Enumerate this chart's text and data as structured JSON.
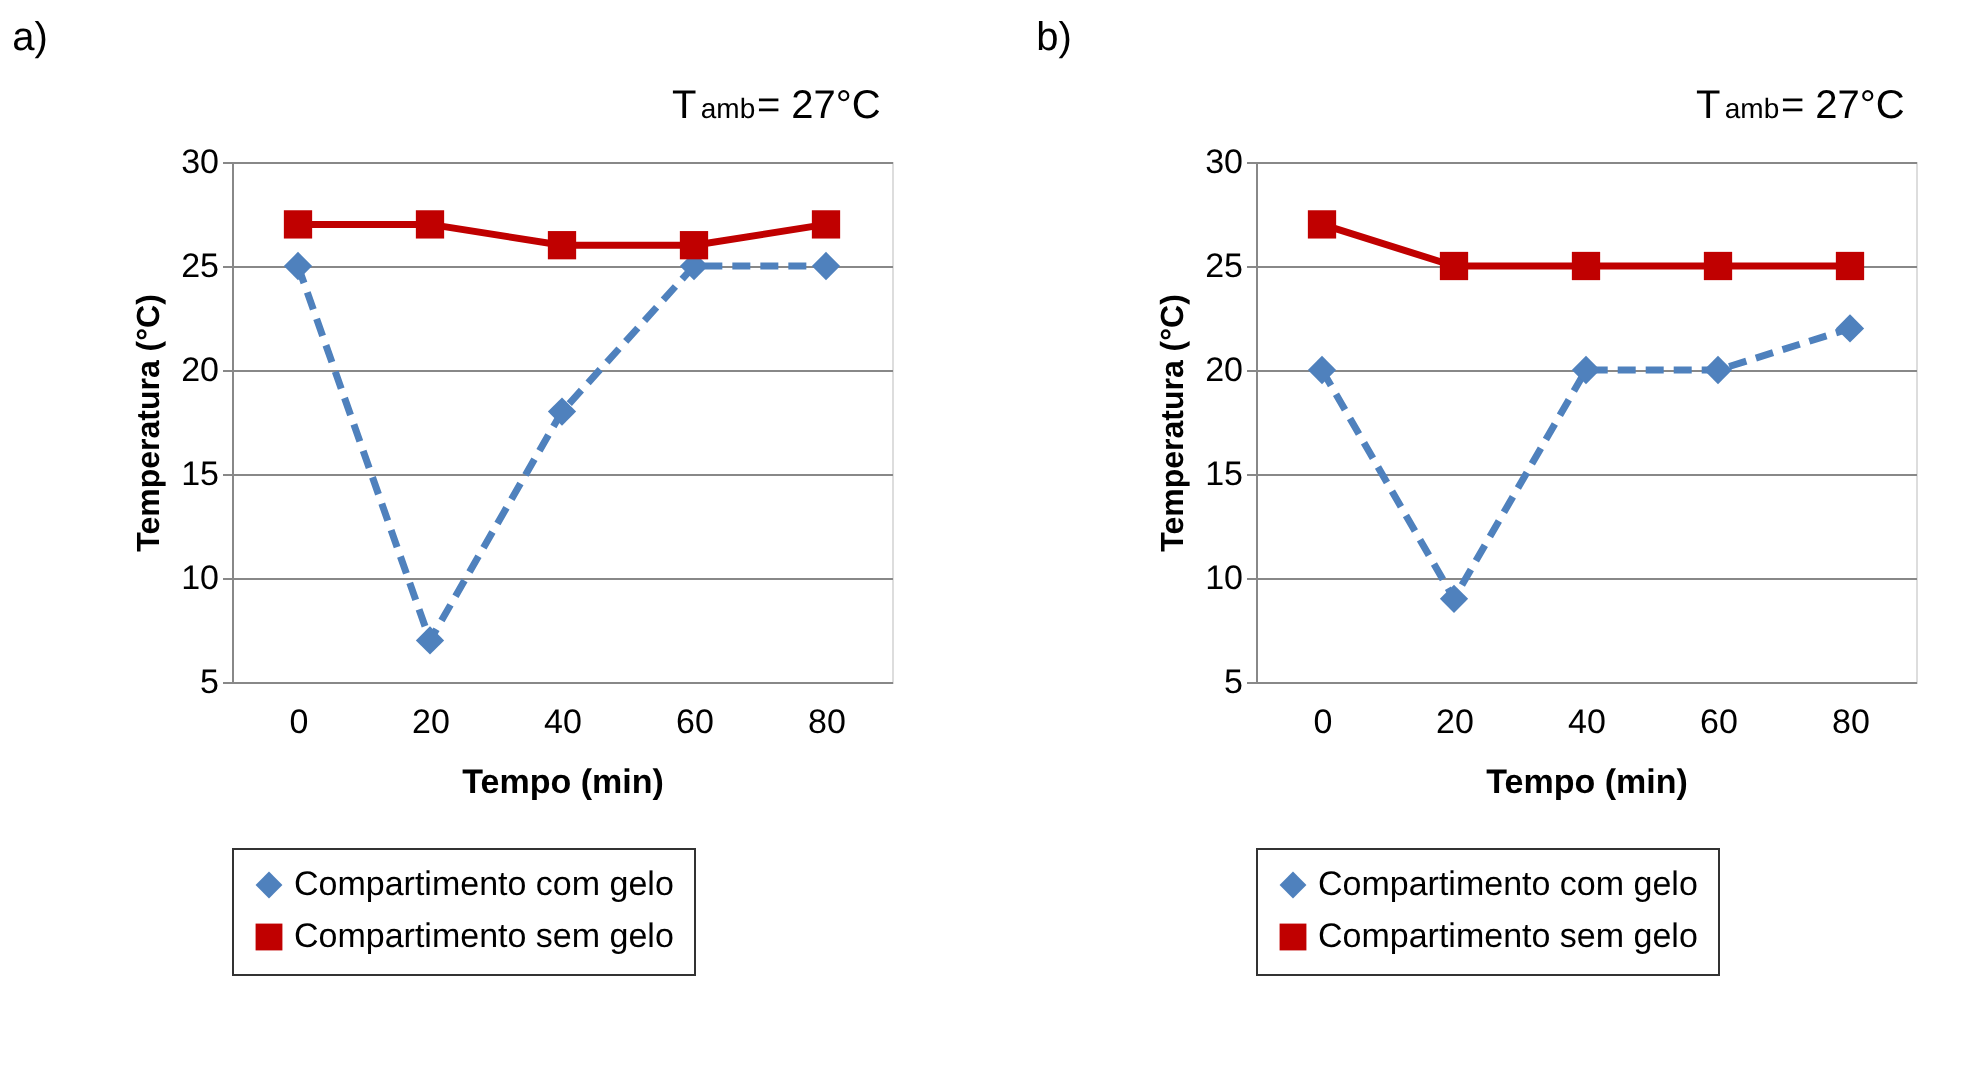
{
  "chart_data": [
    {
      "type": "line",
      "title": "a)",
      "xlabel": "Tempo (min)",
      "ylabel": "Temperatura (°C)",
      "annotations": [
        "T$_{amb}$= 27°C"
      ],
      "categories": [
        "0",
        "20",
        "40",
        "60",
        "80"
      ],
      "series": [
        {
          "name": "Compartimento com gelo",
          "color": "#4f81bd",
          "marker": "diamond",
          "line_style": "dashed",
          "values": [
            25,
            7,
            18,
            25,
            25
          ]
        },
        {
          "name": "Compartimento sem gelo",
          "color": "#c00000",
          "marker": "square",
          "line_style": "solid",
          "values": [
            27,
            27,
            26,
            26,
            27
          ]
        }
      ],
      "ylim": [
        5,
        30
      ],
      "yticks": [
        5,
        10,
        15,
        20,
        25,
        30
      ],
      "grid": "y",
      "legend": "bottom"
    },
    {
      "type": "line",
      "title": "b)",
      "xlabel": "Tempo (min)",
      "ylabel": "Temperatura (°C)",
      "annotations": [
        "T$_{amb}$= 27°C"
      ],
      "categories": [
        "0",
        "20",
        "40",
        "60",
        "80"
      ],
      "series": [
        {
          "name": "Compartimento com gelo",
          "color": "#4f81bd",
          "marker": "diamond",
          "line_style": "dashed",
          "values": [
            20,
            9,
            20,
            20,
            22
          ]
        },
        {
          "name": "Compartimento sem gelo",
          "color": "#c00000",
          "marker": "square",
          "line_style": "solid",
          "values": [
            27,
            25,
            25,
            25,
            25
          ]
        }
      ],
      "ylim": [
        5,
        30
      ],
      "yticks": [
        5,
        10,
        15,
        20,
        25,
        30
      ],
      "grid": "y",
      "legend": "bottom"
    }
  ]
}
